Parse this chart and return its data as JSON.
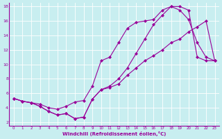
{
  "xlabel": "Windchill (Refroidissement éolien,°C)",
  "background_color": "#c8eef0",
  "line_color": "#990099",
  "xlim": [
    -0.5,
    23.5
  ],
  "ylim": [
    1.5,
    18.5
  ],
  "xticks": [
    0,
    1,
    2,
    3,
    4,
    5,
    6,
    7,
    8,
    9,
    10,
    11,
    12,
    13,
    14,
    15,
    16,
    17,
    18,
    19,
    20,
    21,
    22,
    23
  ],
  "yticks": [
    2,
    4,
    6,
    8,
    10,
    12,
    14,
    16,
    18
  ],
  "line1_x": [
    0,
    1,
    2,
    3,
    4,
    5,
    6,
    7,
    8,
    9,
    10,
    11,
    12,
    13,
    14,
    15,
    16,
    17,
    18,
    19,
    20,
    21,
    22,
    23
  ],
  "line1_y": [
    5.3,
    4.9,
    4.7,
    4.2,
    3.5,
    3.0,
    3.2,
    2.5,
    2.7,
    5.2,
    6.5,
    6.8,
    7.3,
    8.5,
    9.5,
    10.5,
    11.2,
    12.0,
    13.0,
    13.5,
    14.5,
    15.2,
    16.0,
    10.5
  ],
  "line2_x": [
    0,
    1,
    2,
    3,
    4,
    5,
    6,
    7,
    8,
    9,
    10,
    11,
    12,
    13,
    14,
    15,
    16,
    17,
    18,
    19,
    20,
    21,
    22,
    23
  ],
  "line2_y": [
    5.3,
    4.9,
    4.7,
    4.5,
    4.0,
    3.8,
    4.2,
    4.8,
    5.0,
    7.0,
    10.5,
    11.0,
    13.0,
    15.0,
    15.8,
    16.0,
    16.2,
    17.5,
    18.0,
    17.5,
    16.2,
    13.0,
    11.0,
    10.5
  ],
  "line3_x": [
    0,
    1,
    2,
    3,
    4,
    5,
    6,
    7,
    8,
    9,
    10,
    11,
    12,
    13,
    14,
    15,
    16,
    17,
    18,
    19,
    20,
    21,
    22,
    23
  ],
  "line3_y": [
    5.3,
    4.9,
    4.7,
    4.2,
    3.5,
    3.0,
    3.2,
    2.5,
    2.7,
    5.2,
    6.5,
    7.0,
    8.0,
    9.5,
    11.5,
    13.5,
    15.5,
    16.8,
    18.0,
    18.0,
    17.5,
    11.0,
    10.5,
    10.5
  ]
}
